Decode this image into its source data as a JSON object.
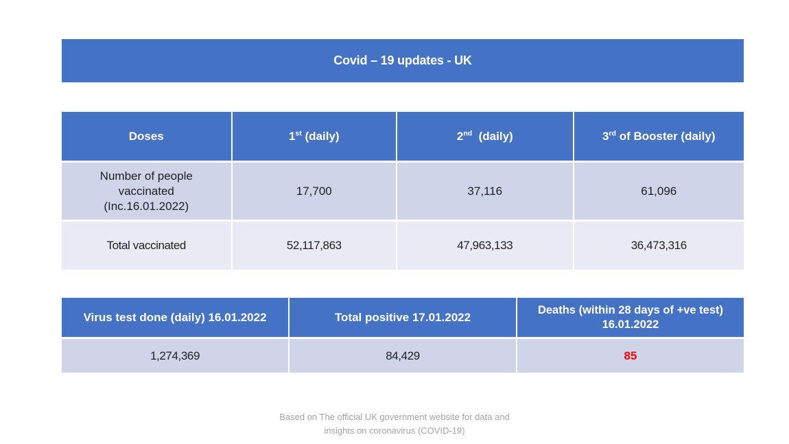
{
  "page": {
    "title": "Covid – 19 updates - UK",
    "source_note": "Based on The official UK government website for data and\ninsights on coronavirus (COVID-19)"
  },
  "colors": {
    "header_blue": "#4472C4",
    "band_dark": "#CFD4E8",
    "band_light": "#E9EBF4",
    "deaths_red": "#FF0000",
    "footer_gray": "#A3A3A3"
  },
  "vaccine_table": {
    "headers": [
      {
        "pre": "Doses",
        "sup": "",
        "post": ""
      },
      {
        "pre": "1",
        "sup": "st",
        "post": " (daily)"
      },
      {
        "pre": "2",
        "sup": "nd",
        "post": "  (daily)"
      },
      {
        "pre": "3",
        "sup": "rd",
        "post": " of Booster (daily)"
      }
    ],
    "rows": [
      {
        "label": "Number of people\nvaccinated\n(Inc.16.01.2022)",
        "values": [
          "17,700",
          "37,116",
          "61,096"
        ]
      },
      {
        "label": "Total vaccinated",
        "values": [
          "52,117,863",
          "47,963,133",
          "36,473,316"
        ]
      }
    ]
  },
  "tests_table": {
    "headers": [
      "Virus test done (daily) 16.01.2022",
      "Total positive 17.01.2022",
      "Deaths (within 28 days of +ve test)\n16.01.2022"
    ],
    "values": [
      "1,274,369",
      "84,429",
      "85"
    ]
  }
}
